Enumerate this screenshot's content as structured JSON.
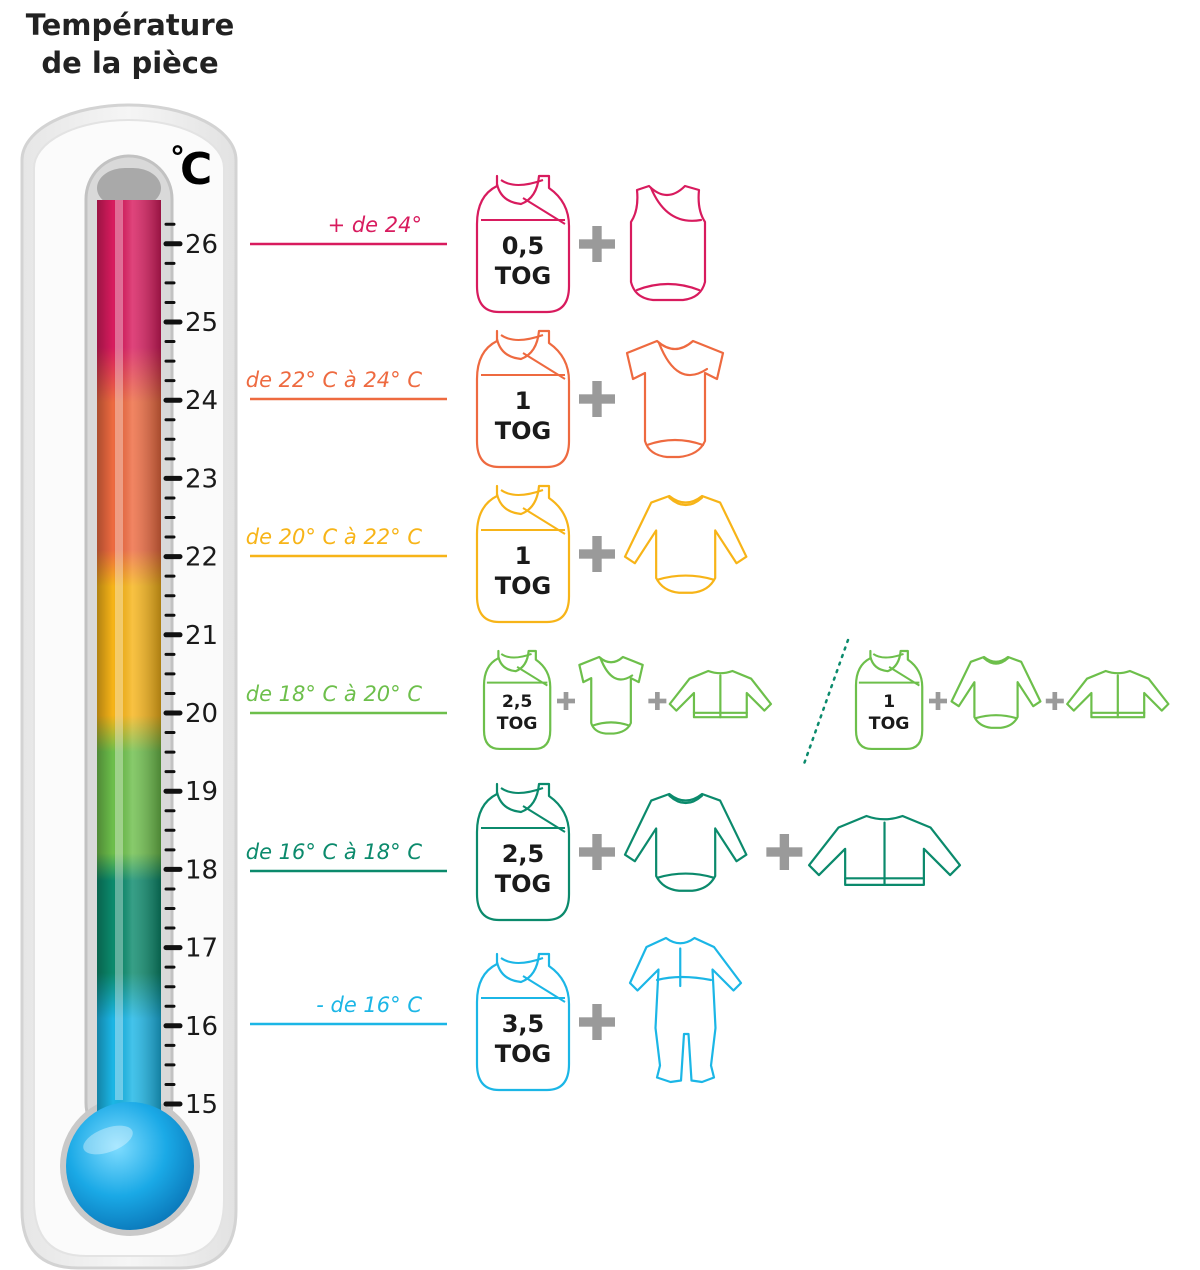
{
  "title": {
    "line1": "Température",
    "line2": "de la pièce"
  },
  "unit": {
    "degree": "°",
    "letter": "C"
  },
  "scale": {
    "min": 15,
    "max": 26,
    "ticks": [
      "15",
      "16",
      "17",
      "18",
      "19",
      "20",
      "21",
      "22",
      "23",
      "24",
      "25",
      "26"
    ]
  },
  "colors": {
    "red": "#d81b5e",
    "orange": "#ee6a40",
    "yellow": "#f7b418",
    "light_green": "#6dbf4b",
    "dark_green": "#0b8a6c",
    "blue": "#1bb6e6",
    "plus": "#9a9a9a"
  },
  "rows": [
    {
      "range": "+ de 24°",
      "color": "#d81b5e",
      "temp": 24.5,
      "options": [
        {
          "tog": [
            "0,5",
            "TOG"
          ],
          "items": [
            "sleeveless-bodysuit-icon"
          ]
        }
      ]
    },
    {
      "range": "de 22° C à 24° C",
      "color": "#ee6a40",
      "temp": 23,
      "options": [
        {
          "tog": [
            "1",
            "TOG"
          ],
          "items": [
            "short-sleeve-wrap-bodysuit-icon"
          ]
        }
      ]
    },
    {
      "range": "de 20° C à 22° C",
      "color": "#f7b418",
      "temp": 21,
      "options": [
        {
          "tog": [
            "1",
            "TOG"
          ],
          "items": [
            "long-sleeve-bodysuit-icon"
          ]
        }
      ]
    },
    {
      "range": "de 18° C à 20° C",
      "color": "#6dbf4b",
      "temp": 19,
      "options": [
        {
          "tog": [
            "2,5",
            "TOG"
          ],
          "items": [
            "short-sleeve-wrap-bodysuit-icon",
            "cardigan-icon"
          ]
        },
        {
          "tog": [
            "1",
            "TOG"
          ],
          "items": [
            "long-sleeve-bodysuit-icon",
            "cardigan-icon"
          ]
        }
      ]
    },
    {
      "range": "de 16° C à 18° C",
      "color": "#0b8a6c",
      "temp": 17,
      "options": [
        {
          "tog": [
            "2,5",
            "TOG"
          ],
          "items": [
            "long-sleeve-bodysuit-icon",
            "cardigan-icon"
          ]
        }
      ]
    },
    {
      "range": "- de 16° C",
      "color": "#1bb6e6",
      "temp": 15.5,
      "options": [
        {
          "tog": [
            "3,5",
            "TOG"
          ],
          "items": [
            "footed-pajamas-icon"
          ]
        }
      ]
    }
  ]
}
